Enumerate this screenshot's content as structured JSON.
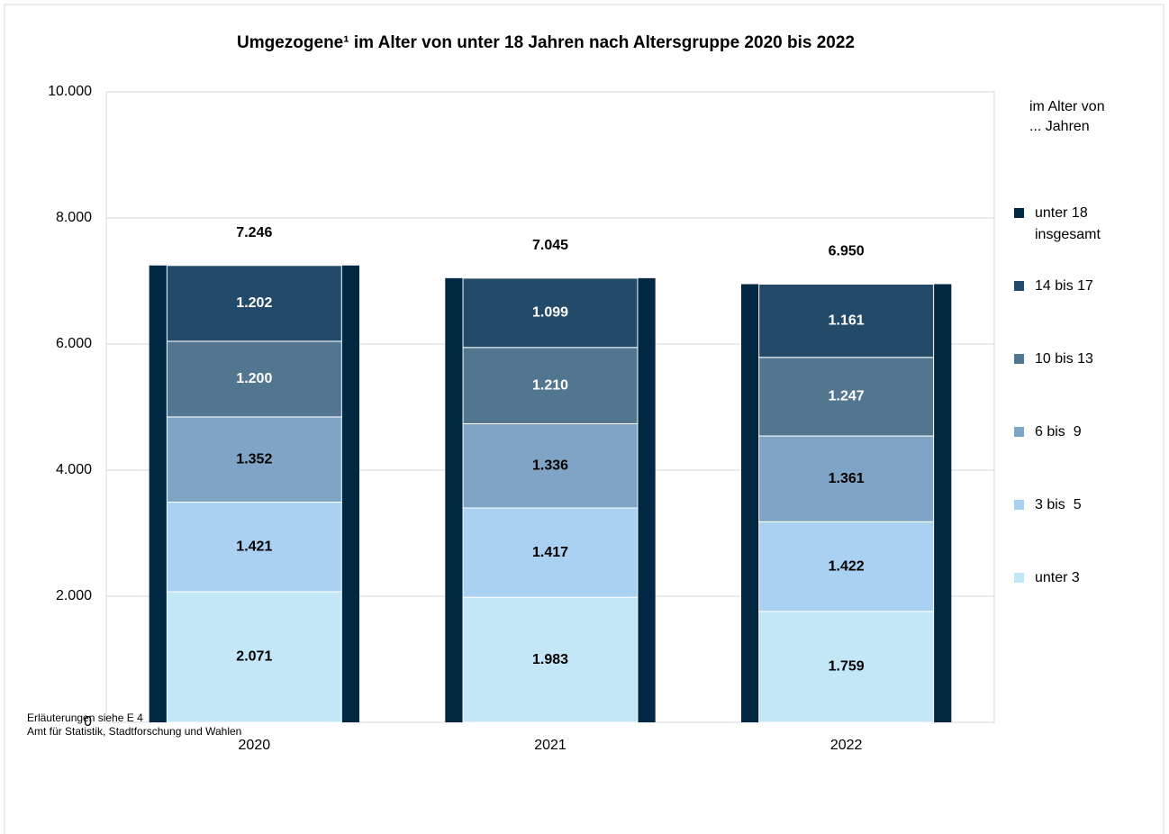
{
  "chart_data": {
    "type": "stacked_bar_with_total",
    "title": "Umgezogene¹ im Alter von unter 18 Jahren nach Altersgruppe 2020 bis 2022",
    "categories": [
      "2020",
      "2021",
      "2022"
    ],
    "total": {
      "name": "unter 18 insgesamt",
      "color": "#002843",
      "values": [
        7246,
        7045,
        6950
      ],
      "value_labels": [
        "7.246",
        "7.045",
        "6.950"
      ]
    },
    "series": [
      {
        "name": "unter 3",
        "color": "#c4e7f8",
        "values": [
          2071,
          1983,
          1759
        ],
        "value_labels": [
          "2.071",
          "1.983",
          "1.759"
        ]
      },
      {
        "name": "3 bis  5",
        "color": "#aad0f2",
        "values": [
          1421,
          1417,
          1422
        ],
        "value_labels": [
          "1.421",
          "1.417",
          "1.422"
        ]
      },
      {
        "name": "6 bis  9",
        "color": "#7fa4c5",
        "values": [
          1352,
          1336,
          1361
        ],
        "value_labels": [
          "1.352",
          "1.336",
          "1.361"
        ]
      },
      {
        "name": "10 bis 13",
        "color": "#537690",
        "values": [
          1200,
          1210,
          1247
        ],
        "value_labels": [
          "1.200",
          "1.210",
          "1.247"
        ]
      },
      {
        "name": "14 bis 17",
        "color": "#234b69",
        "values": [
          1202,
          1099,
          1161
        ],
        "value_labels": [
          "1.202",
          "1.099",
          "1.161"
        ]
      }
    ],
    "legend_title": [
      "im Alter von",
      "... Jahren"
    ],
    "ylim": [
      0,
      10000
    ],
    "yticks": [
      0,
      {
        "value": 2000,
        "label": "2.000"
      },
      {
        "value": 4000,
        "label": "4.000"
      },
      {
        "value": 6000,
        "label": "6.000"
      },
      {
        "value": 8000,
        "label": "8.000"
      },
      {
        "value": 10000,
        "label": "10.000"
      }
    ],
    "grid": true,
    "legend": "right"
  },
  "footnotes": [
    "Erläuterungen siehe E 4",
    "Amt für Statistik, Stadtforschung und Wahlen"
  ]
}
